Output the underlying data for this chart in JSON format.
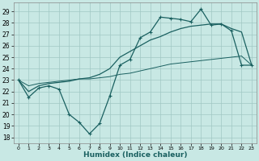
{
  "xlabel": "Humidex (Indice chaleur)",
  "xlim": [
    -0.5,
    23.5
  ],
  "ylim": [
    17.5,
    29.8
  ],
  "yticks": [
    18,
    19,
    20,
    21,
    22,
    23,
    24,
    25,
    26,
    27,
    28,
    29
  ],
  "xticks": [
    0,
    1,
    2,
    3,
    4,
    5,
    6,
    7,
    8,
    9,
    10,
    11,
    12,
    13,
    14,
    15,
    16,
    17,
    18,
    19,
    20,
    21,
    22,
    23
  ],
  "bg_color": "#c8e8e4",
  "grid_color": "#a0c8c4",
  "line_color": "#1a6060",
  "line1_y": [
    23.0,
    21.5,
    22.3,
    22.5,
    22.2,
    20.0,
    19.3,
    18.3,
    19.2,
    21.6,
    24.3,
    24.8,
    26.7,
    27.2,
    28.5,
    28.4,
    28.3,
    28.1,
    29.2,
    27.8,
    27.9,
    27.3,
    24.3,
    24.3
  ],
  "line2_y": [
    23.0,
    22.0,
    22.5,
    22.7,
    22.8,
    22.9,
    23.1,
    23.2,
    23.5,
    24.0,
    25.0,
    25.5,
    26.0,
    26.5,
    26.8,
    27.2,
    27.5,
    27.7,
    27.8,
    27.9,
    27.9,
    27.5,
    27.2,
    24.3
  ],
  "line3_y": [
    23.0,
    22.5,
    22.7,
    22.8,
    22.9,
    23.0,
    23.1,
    23.1,
    23.2,
    23.3,
    23.5,
    23.6,
    23.8,
    24.0,
    24.2,
    24.4,
    24.5,
    24.6,
    24.7,
    24.8,
    24.9,
    25.0,
    25.1,
    24.3
  ]
}
